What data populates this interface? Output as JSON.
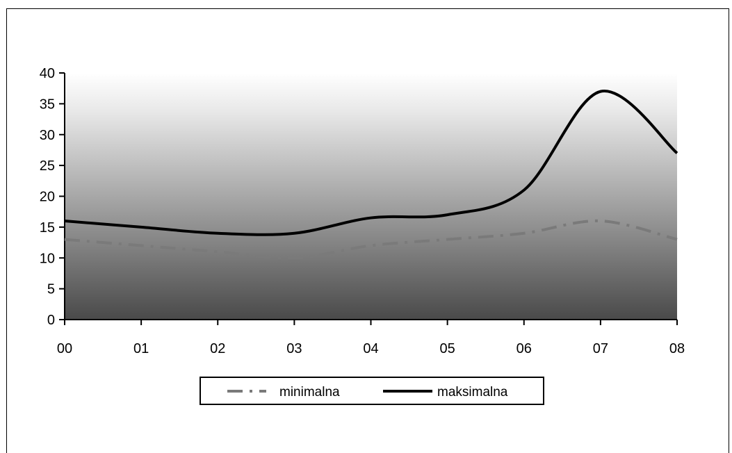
{
  "chart_data": {
    "type": "line",
    "categories": [
      "00",
      "01",
      "02",
      "03",
      "04",
      "05",
      "06",
      "07",
      "08"
    ],
    "series": [
      {
        "name": "minimalna",
        "values": [
          13,
          12,
          11,
          10,
          12,
          13,
          14,
          16,
          13
        ],
        "color": "#7a7a7a",
        "style": "dash-dot"
      },
      {
        "name": "maksimalna",
        "values": [
          16,
          15,
          14,
          14,
          16.5,
          17,
          21,
          37,
          27
        ],
        "color": "#000000",
        "style": "solid"
      }
    ],
    "ylim": [
      0,
      40
    ],
    "yticks": [
      "0",
      "5",
      "10",
      "15",
      "20",
      "25",
      "30",
      "35",
      "40"
    ],
    "legend_position": "bottom",
    "background": "vertical gradient white to dark gray",
    "grid": false
  }
}
